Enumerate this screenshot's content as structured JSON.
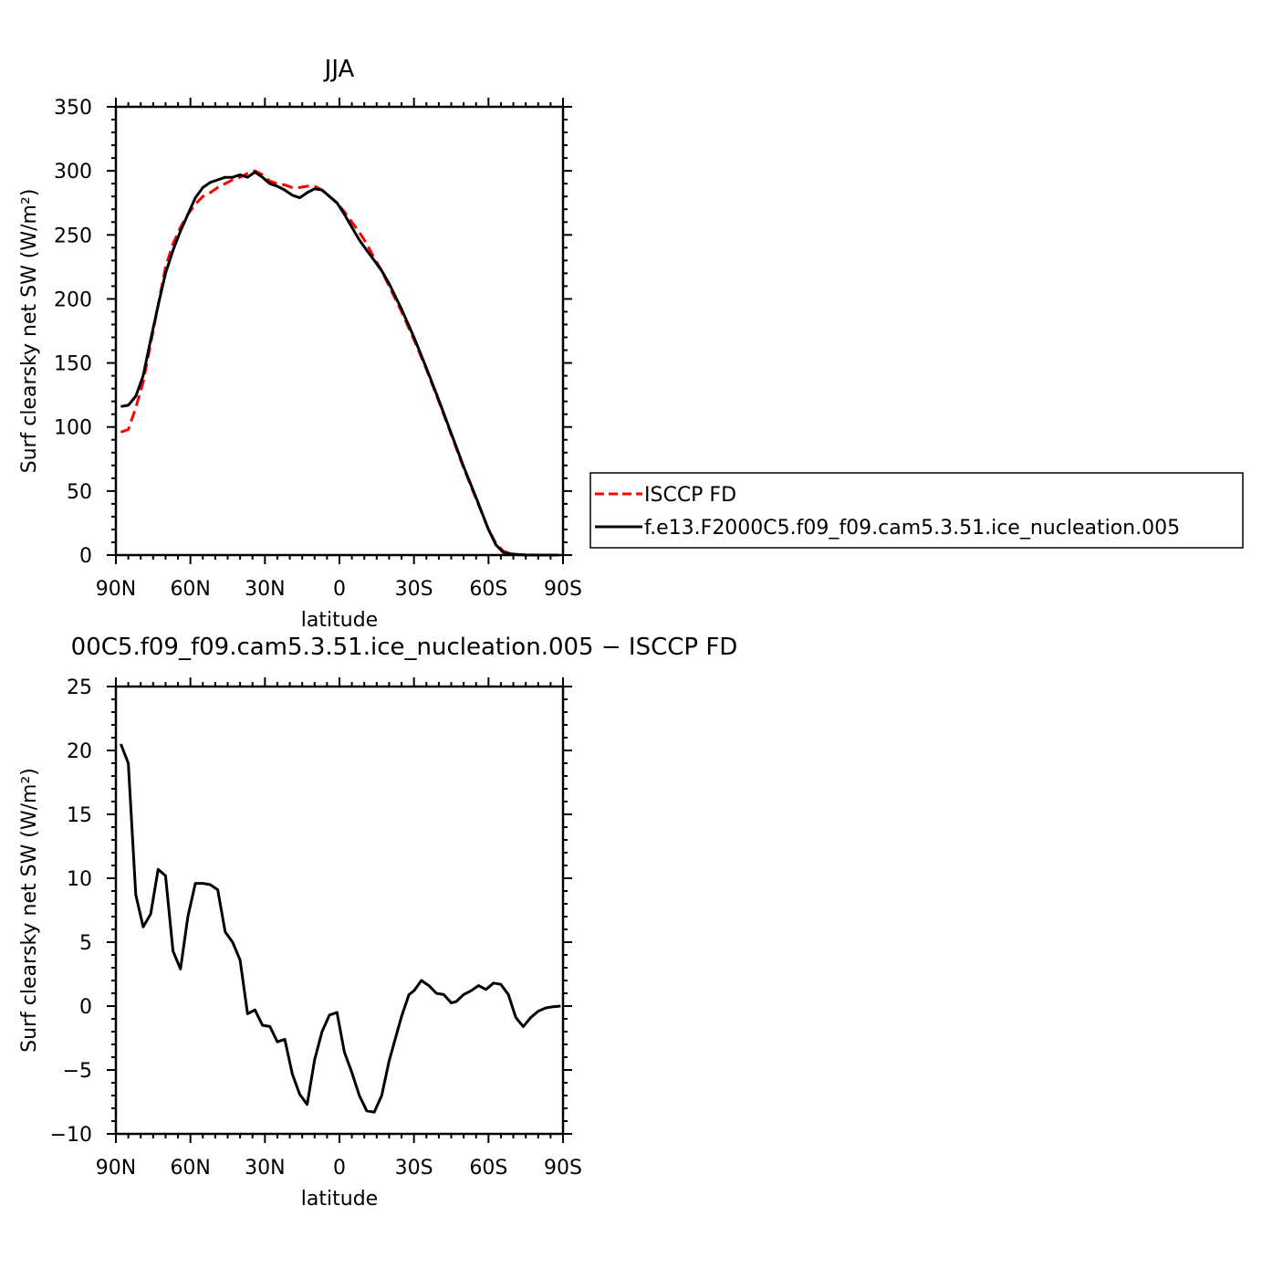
{
  "chart_data": [
    {
      "type": "line",
      "title": "JJA",
      "xlabel": "latitude",
      "ylabel": "Surf clearsky net SW (W/m²)",
      "xlim": [
        90,
        -90
      ],
      "ylim": [
        0,
        350
      ],
      "xticks": [
        90,
        60,
        30,
        0,
        -30,
        -60,
        -90
      ],
      "xtick_labels": [
        "90N",
        "60N",
        "30N",
        "0",
        "30S",
        "60S",
        "90S"
      ],
      "yticks": [
        0,
        50,
        100,
        150,
        200,
        250,
        300,
        350
      ],
      "ytick_labels": [
        "0",
        "50",
        "100",
        "150",
        "200",
        "250",
        "300",
        "350"
      ],
      "grid": false,
      "legend_position": "right",
      "series": [
        {
          "name": "ISCCP FD",
          "color": "#ff0000",
          "style": "dashed",
          "x": [
            88,
            85,
            82,
            79,
            76,
            73,
            70,
            67,
            64,
            61,
            58,
            55,
            52,
            49,
            46,
            43,
            40,
            37,
            34,
            31,
            28,
            25,
            22,
            19,
            16,
            13,
            10,
            7,
            4,
            1,
            -2,
            -5,
            -8,
            -11,
            -14,
            -17,
            -20,
            -25,
            -30,
            -35,
            -40,
            -45,
            -50,
            -55,
            -60,
            -63,
            -66,
            -69,
            -72,
            -75,
            -80,
            -85,
            -88
          ],
          "values": [
            96,
            98,
            115,
            135,
            165,
            195,
            225,
            243,
            256,
            266,
            274,
            280,
            283,
            287,
            290,
            293,
            295,
            298,
            300,
            297,
            292,
            290,
            289,
            287,
            287,
            288,
            288,
            285,
            280,
            275,
            268,
            260,
            252,
            243,
            232,
            222,
            210,
            190,
            168,
            145,
            120,
            94,
            68,
            44,
            20,
            9,
            3,
            1,
            0.5,
            0.2,
            0,
            0,
            0
          ]
        },
        {
          "name": "f.e13.F2000C5.f09_f09.cam5.3.51.ice_nucleation.005",
          "color": "#000000",
          "style": "solid",
          "x": [
            88,
            85,
            82,
            79,
            76,
            73,
            70,
            67,
            64,
            61,
            58,
            55,
            52,
            49,
            46,
            43,
            40,
            37,
            34,
            31,
            28,
            25,
            22,
            19,
            16,
            13,
            10,
            7,
            4,
            1,
            -2,
            -5,
            -8,
            -11,
            -14,
            -17,
            -20,
            -25,
            -30,
            -35,
            -40,
            -45,
            -50,
            -55,
            -60,
            -63,
            -66,
            -69,
            -72,
            -75,
            -80,
            -85,
            -88
          ],
          "values": [
            116,
            117,
            124,
            140,
            168,
            195,
            220,
            238,
            253,
            266,
            279,
            287,
            291,
            293,
            295,
            295,
            297,
            295,
            299,
            295,
            290,
            288,
            285,
            281,
            279,
            283,
            286,
            285,
            280,
            275,
            266,
            256,
            246,
            238,
            230,
            222,
            212,
            192,
            170,
            146,
            121,
            95,
            69,
            45,
            20,
            8,
            2,
            1,
            0.3,
            0.1,
            0,
            0,
            0
          ]
        }
      ]
    },
    {
      "type": "line",
      "title": "00C5.f09_f09.cam5.3.51.ice_nucleation.005 − ISCCP FD",
      "xlabel": "latitude",
      "ylabel": "Surf clearsky net SW (W/m²)",
      "xlim": [
        90,
        -90
      ],
      "ylim": [
        -10,
        25
      ],
      "xticks": [
        90,
        60,
        30,
        0,
        -30,
        -60,
        -90
      ],
      "xtick_labels": [
        "90N",
        "60N",
        "30N",
        "0",
        "30S",
        "60S",
        "90S"
      ],
      "yticks": [
        -10,
        -5,
        0,
        5,
        10,
        15,
        20,
        25
      ],
      "ytick_labels": [
        "−10",
        "−5",
        "0",
        "5",
        "10",
        "15",
        "20",
        "25"
      ],
      "grid": false,
      "series": [
        {
          "color": "#000000",
          "style": "solid",
          "x": [
            88,
            85,
            82,
            79,
            76,
            73,
            70,
            67,
            64,
            61,
            58,
            55,
            52,
            49,
            46,
            43,
            40,
            37,
            34,
            31,
            28,
            25,
            22,
            19,
            16,
            13,
            10,
            7,
            4,
            1,
            -2,
            -5,
            -8,
            -11,
            -14,
            -17,
            -20,
            -23,
            -25,
            -28,
            -30,
            -33,
            -36,
            -39,
            -42,
            -45,
            -47,
            -50,
            -53,
            -56,
            -59,
            -62,
            -65,
            -68,
            -71,
            -74,
            -77,
            -80,
            -83,
            -86,
            -89
          ],
          "values": [
            20.5,
            19,
            8.7,
            6.2,
            7.2,
            10.7,
            10.2,
            4.3,
            2.9,
            7.0,
            9.6,
            9.6,
            9.5,
            9.1,
            5.8,
            5.0,
            3.6,
            -0.6,
            -0.3,
            -1.5,
            -1.6,
            -2.8,
            -2.6,
            -5.3,
            -6.9,
            -7.7,
            -4.2,
            -2.0,
            -0.7,
            -0.5,
            -3.6,
            -5.2,
            -7.0,
            -8.2,
            -8.3,
            -7.0,
            -4.3,
            -2.2,
            -0.8,
            0.9,
            1.2,
            2.0,
            1.6,
            1.0,
            0.9,
            0.25,
            0.35,
            0.9,
            1.2,
            1.6,
            1.3,
            1.8,
            1.7,
            0.9,
            -0.9,
            -1.6,
            -0.9,
            -0.4,
            -0.15,
            -0.05,
            0
          ]
        }
      ]
    }
  ]
}
